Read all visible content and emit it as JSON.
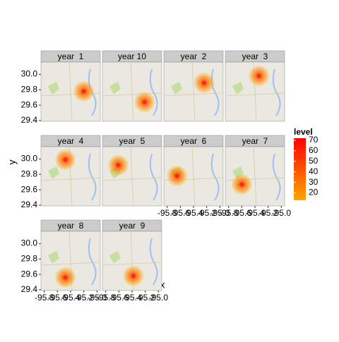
{
  "chart_data": {
    "type": "density-facets",
    "x_label": "x",
    "y_label": "y",
    "xlim": [
      -95.85,
      -94.95
    ],
    "ylim": [
      29.39,
      30.16
    ],
    "xticks": [
      -95.8,
      -95.6,
      -95.4,
      -95.2,
      {
        "value": -95.0,
        "label": "-95.0"
      }
    ],
    "yticks": [
      {
        "value": 30.0,
        "label": "30.0"
      },
      29.8,
      29.6,
      29.4
    ],
    "panels": [
      {
        "name": "year  1",
        "x": -95.2,
        "y": 29.78
      },
      {
        "name": "year 10",
        "x": -95.21,
        "y": 29.64
      },
      {
        "name": "year  2",
        "x": -95.24,
        "y": 29.89
      },
      {
        "name": "year  3",
        "x": -95.34,
        "y": 29.98
      },
      {
        "name": "year  4",
        "x": -95.48,
        "y": 29.99
      },
      {
        "name": "year  5",
        "x": -95.61,
        "y": 29.92
      },
      {
        "name": "year  6",
        "x": -95.65,
        "y": 29.78
      },
      {
        "name": "year  7",
        "x": -95.6,
        "y": 29.67
      },
      {
        "name": "year  8",
        "x": -95.48,
        "y": 29.56
      },
      {
        "name": "year  9",
        "x": -95.38,
        "y": 29.58
      }
    ],
    "legend": {
      "title": "level",
      "lim": [
        13,
        72
      ],
      "ticks": [
        70,
        60,
        50,
        40,
        30,
        20
      ],
      "low_color": "#ffa500",
      "high_color": "#ff0000"
    }
  }
}
